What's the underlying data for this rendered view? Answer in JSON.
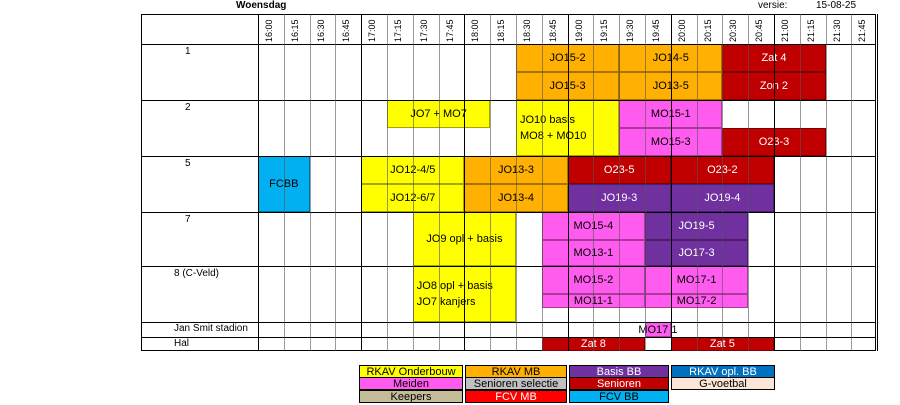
{
  "header": {
    "day": "Woensdag",
    "version_label": "versie:",
    "version_date": "15-08-25"
  },
  "times": [
    "16:00",
    "16:15",
    "16:30",
    "16:45",
    "17:00",
    "17:15",
    "17:30",
    "17:45",
    "18:00",
    "18:15",
    "18:30",
    "18:45",
    "19:00",
    "19:15",
    "19:30",
    "19:45",
    "20:00",
    "20:15",
    "20:30",
    "20:45",
    "21:00",
    "21:15",
    "21:30",
    "21:45"
  ],
  "fields": [
    "1",
    "2",
    "5",
    "7",
    "8 (C-Veld)",
    "Jan Smit stadion",
    "Hal"
  ],
  "colors": {
    "yellow": "#ffff00",
    "orange": "#ffb000",
    "red": "#c00000",
    "magenta": "#ff5bef",
    "purple": "#7030a0",
    "blue": "#00b0f0",
    "gray": "#c0c0c0",
    "peach": "#fbe5d6",
    "tan": "#c5bd9a",
    "fcvred": "#ff0000",
    "darkblue": "#0070c0"
  },
  "blocks": [
    {
      "label": "JO15-2",
      "color": "orange",
      "text": "#000"
    },
    {
      "label": "JO15-3",
      "color": "orange",
      "text": "#000"
    },
    {
      "label": "JO14-5",
      "color": "orange",
      "text": "#000"
    },
    {
      "label": "JO13-5",
      "color": "orange",
      "text": "#000"
    },
    {
      "label": "Zat 4",
      "color": "red",
      "text": "#fff"
    },
    {
      "label": "Zon 2",
      "color": "red",
      "text": "#fff"
    },
    {
      "label": "JO7 + MO7",
      "color": "yellow",
      "text": "#000"
    },
    {
      "label": "JO10 basis",
      "label2": "MO8 + MO10",
      "color": "yellow",
      "text": "#000"
    },
    {
      "label": "MO15-1",
      "color": "magenta",
      "text": "#000"
    },
    {
      "label": "MO15-3",
      "color": "magenta",
      "text": "#000"
    },
    {
      "label": "O23-3",
      "color": "red",
      "text": "#fff"
    },
    {
      "label": "FCBB",
      "color": "blue",
      "text": "#000"
    },
    {
      "label": "JO12-4/5",
      "color": "yellow",
      "text": "#000"
    },
    {
      "label": "JO12-6/7",
      "color": "yellow",
      "text": "#000"
    },
    {
      "label": "JO13-3",
      "color": "orange",
      "text": "#000"
    },
    {
      "label": "JO13-4",
      "color": "orange",
      "text": "#000"
    },
    {
      "label": "O23-5",
      "color": "red",
      "text": "#fff"
    },
    {
      "label": "O23-2",
      "color": "red",
      "text": "#fff"
    },
    {
      "label": "JO19-3",
      "color": "purple",
      "text": "#fff"
    },
    {
      "label": "JO19-4",
      "color": "purple",
      "text": "#fff"
    },
    {
      "label": "JO9 opl + basis",
      "color": "yellow",
      "text": "#000"
    },
    {
      "label": "MO15-4",
      "color": "magenta",
      "text": "#000"
    },
    {
      "label": "MO13-1",
      "color": "magenta",
      "text": "#000"
    },
    {
      "label": "JO19-5",
      "color": "purple",
      "text": "#fff"
    },
    {
      "label": "JO17-3",
      "color": "purple",
      "text": "#fff"
    },
    {
      "label": "JO8 opl + basis",
      "label2": "JO7 kanjers",
      "color": "yellow",
      "text": "#000"
    },
    {
      "label": "MO15-2",
      "color": "magenta",
      "text": "#000"
    },
    {
      "label": "MO11-1",
      "color": "magenta",
      "text": "#000"
    },
    {
      "label": "MO17-1",
      "color": "magenta",
      "text": "#000"
    },
    {
      "label": "MO17-2",
      "color": "magenta",
      "text": "#000"
    },
    {
      "label": "MO17 1",
      "color": "magenta",
      "text": "#000"
    },
    {
      "label": "Zat 8",
      "color": "red",
      "text": "#fff"
    },
    {
      "label": "Zat 5",
      "color": "red",
      "text": "#fff"
    }
  ],
  "legend": [
    {
      "label": "RKAV Onderbouw",
      "color": "yellow",
      "text": "#000"
    },
    {
      "label": "RKAV MB",
      "color": "orange",
      "text": "#000"
    },
    {
      "label": "Basis BB",
      "color": "purple",
      "text": "#fff"
    },
    {
      "label": "RKAV opl. BB",
      "color": "darkblue",
      "text": "#fff"
    },
    {
      "label": "Meiden",
      "color": "magenta",
      "text": "#000"
    },
    {
      "label": "Senioren selectie",
      "color": "gray",
      "text": "#000"
    },
    {
      "label": "Senioren",
      "color": "red",
      "text": "#fff"
    },
    {
      "label": "G-voetbal",
      "color": "peach",
      "text": "#000"
    },
    {
      "label": "Keepers",
      "color": "tan",
      "text": "#000"
    },
    {
      "label": "FCV MB",
      "color": "fcvred",
      "text": "#fff"
    },
    {
      "label": "FCV BB",
      "color": "blue",
      "text": "#000"
    }
  ]
}
